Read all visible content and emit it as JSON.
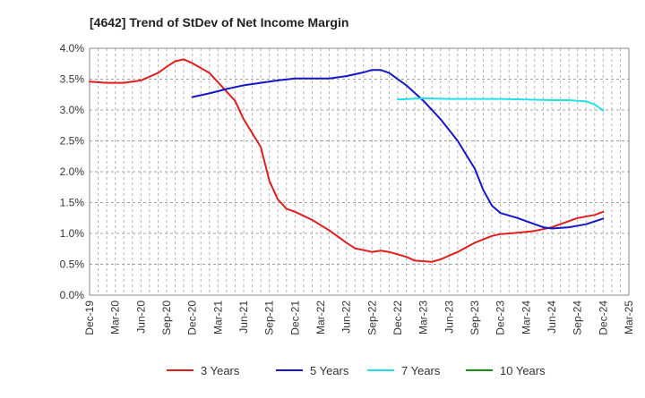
{
  "chart_data": {
    "type": "line",
    "title": "[4642]  Trend of StDev of Net Income Margin",
    "xlabel": "",
    "ylabel": "",
    "y_tick_labels": [
      "0.0%",
      "0.5%",
      "1.0%",
      "1.5%",
      "2.0%",
      "2.5%",
      "3.0%",
      "3.5%",
      "4.0%"
    ],
    "ylim": [
      0,
      4.0
    ],
    "y_unit": "%",
    "x_tick_labels": [
      "Dec-19",
      "Mar-20",
      "Jun-20",
      "Sep-20",
      "Dec-20",
      "Mar-21",
      "Jun-21",
      "Sep-21",
      "Dec-21",
      "Mar-22",
      "Jun-22",
      "Sep-22",
      "Dec-22",
      "Mar-23",
      "Jun-23",
      "Sep-23",
      "Dec-23",
      "Mar-24",
      "Jun-24",
      "Sep-24",
      "Dec-24",
      "Mar-25"
    ],
    "grid": true,
    "legend_position": "bottom",
    "series": [
      {
        "name": "3 Years",
        "color": "#dd1f1f",
        "points": [
          [
            "Dec-19",
            3.46
          ],
          [
            "Feb-20",
            3.44
          ],
          [
            "Apr-20",
            3.44
          ],
          [
            "Jun-20",
            3.48
          ],
          [
            "Aug-20",
            3.6
          ],
          [
            "Sep-20",
            3.7
          ],
          [
            "Oct-20",
            3.79
          ],
          [
            "Nov-20",
            3.82
          ],
          [
            "Dec-20",
            3.76
          ],
          [
            "Feb-21",
            3.6
          ],
          [
            "Mar-21",
            3.45
          ],
          [
            "May-21",
            3.15
          ],
          [
            "Jun-21",
            2.85
          ],
          [
            "Aug-21",
            2.4
          ],
          [
            "Sep-21",
            1.85
          ],
          [
            "Oct-21",
            1.55
          ],
          [
            "Nov-21",
            1.4
          ],
          [
            "Dec-21",
            1.35
          ],
          [
            "Feb-22",
            1.22
          ],
          [
            "Apr-22",
            1.05
          ],
          [
            "Jun-22",
            0.85
          ],
          [
            "Jul-22",
            0.76
          ],
          [
            "Sep-22",
            0.7
          ],
          [
            "Oct-22",
            0.72
          ],
          [
            "Nov-22",
            0.7
          ],
          [
            "Jan-23",
            0.62
          ],
          [
            "Feb-23",
            0.56
          ],
          [
            "Apr-23",
            0.54
          ],
          [
            "May-23",
            0.58
          ],
          [
            "Jul-23",
            0.7
          ],
          [
            "Sep-23",
            0.85
          ],
          [
            "Nov-23",
            0.96
          ],
          [
            "Dec-23",
            0.99
          ],
          [
            "Feb-24",
            1.01
          ],
          [
            "Apr-24",
            1.04
          ],
          [
            "Jun-24",
            1.1
          ],
          [
            "Aug-24",
            1.2
          ],
          [
            "Sep-24",
            1.25
          ],
          [
            "Nov-24",
            1.3
          ],
          [
            "Dec-24",
            1.35
          ]
        ]
      },
      {
        "name": "5 Years",
        "color": "#1616c8",
        "points": [
          [
            "Dec-20",
            3.21
          ],
          [
            "Feb-21",
            3.27
          ],
          [
            "Apr-21",
            3.34
          ],
          [
            "Jun-21",
            3.4
          ],
          [
            "Aug-21",
            3.44
          ],
          [
            "Oct-21",
            3.48
          ],
          [
            "Dec-21",
            3.51
          ],
          [
            "Feb-22",
            3.51
          ],
          [
            "Apr-22",
            3.51
          ],
          [
            "Jun-22",
            3.55
          ],
          [
            "Aug-22",
            3.61
          ],
          [
            "Sep-22",
            3.65
          ],
          [
            "Oct-22",
            3.65
          ],
          [
            "Nov-22",
            3.6
          ],
          [
            "Jan-23",
            3.4
          ],
          [
            "Mar-23",
            3.15
          ],
          [
            "May-23",
            2.85
          ],
          [
            "Jul-23",
            2.5
          ],
          [
            "Sep-23",
            2.05
          ],
          [
            "Oct-23",
            1.7
          ],
          [
            "Nov-23",
            1.45
          ],
          [
            "Dec-23",
            1.33
          ],
          [
            "Feb-24",
            1.25
          ],
          [
            "Apr-24",
            1.15
          ],
          [
            "May-24",
            1.1
          ],
          [
            "Jun-24",
            1.08
          ],
          [
            "Aug-24",
            1.1
          ],
          [
            "Oct-24",
            1.15
          ],
          [
            "Dec-24",
            1.24
          ]
        ]
      },
      {
        "name": "7 Years",
        "color": "#22e0e8",
        "points": [
          [
            "Dec-22",
            3.17
          ],
          [
            "Mar-23",
            3.19
          ],
          [
            "Jun-23",
            3.18
          ],
          [
            "Sep-23",
            3.18
          ],
          [
            "Dec-23",
            3.18
          ],
          [
            "Mar-24",
            3.17
          ],
          [
            "Jun-24",
            3.16
          ],
          [
            "Aug-24",
            3.16
          ],
          [
            "Sep-24",
            3.15
          ],
          [
            "Oct-24",
            3.14
          ],
          [
            "Nov-24",
            3.09
          ],
          [
            "Dec-24",
            2.99
          ]
        ]
      },
      {
        "name": "10 Years",
        "color": "#1a8a1a",
        "points": []
      }
    ]
  }
}
